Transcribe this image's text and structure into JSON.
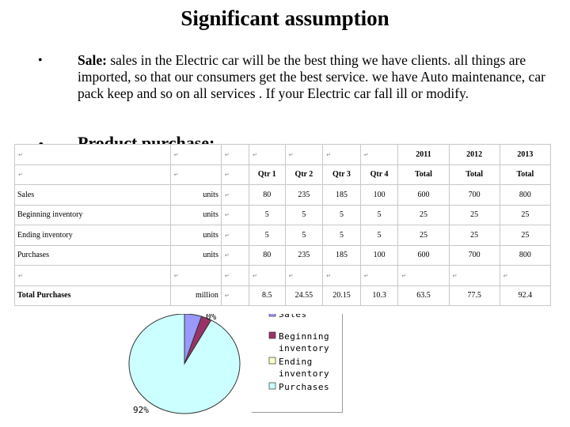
{
  "slide": {
    "title": "Significant assumption",
    "bullet_char": "•",
    "para_label": "Sale:",
    "para_text": " sales in the Electric car will be the best thing we have clients. all things are imported, so that our consumers get the best service. we have Auto maintenance, car pack keep and so on all services . If your Electric car fall ill or modify.",
    "heading2": "Product purchase:"
  },
  "table": {
    "header_years": [
      "2011",
      "2012",
      "2013"
    ],
    "col_headers": [
      "Qtr 1",
      "Qtr 2",
      "Qtr 3",
      "Qtr 4",
      "Total",
      "Total",
      "Total"
    ],
    "rows": [
      {
        "label": "Sales",
        "unit": "units",
        "values": [
          "80",
          "235",
          "185",
          "100",
          "600",
          "700",
          "800"
        ]
      },
      {
        "label": "Beginning inventory",
        "unit": "units",
        "values": [
          "5",
          "5",
          "5",
          "5",
          "25",
          "25",
          "25"
        ]
      },
      {
        "label": "Ending inventory",
        "unit": "units",
        "values": [
          "5",
          "5",
          "5",
          "5",
          "25",
          "25",
          "25"
        ]
      },
      {
        "label": "Purchases",
        "unit": "units",
        "values": [
          "80",
          "235",
          "185",
          "100",
          "600",
          "700",
          "800"
        ]
      }
    ],
    "total_row": {
      "label": "Total Purchases",
      "unit": "million",
      "values": [
        "8.5",
        "24.55",
        "20.15",
        "10.3",
        "63.5",
        "77.5",
        "92.4"
      ]
    }
  },
  "chart_data": {
    "type": "pie",
    "slices": [
      {
        "name": "Sales",
        "value": 5,
        "label": "5%",
        "color": "#9999ff"
      },
      {
        "name": "Beginning inventory",
        "value": 3,
        "label": "3%",
        "color": "#993366"
      },
      {
        "name": "Ending inventory",
        "value": 0,
        "label": "0%",
        "color": "#ffffcc"
      },
      {
        "name": "Purchases",
        "value": 92,
        "label": "92%",
        "color": "#ccffff"
      }
    ],
    "legend": [
      "Sales",
      "Beginning inventory",
      "Ending inventory",
      "Purchases"
    ],
    "legend_position": "right"
  }
}
